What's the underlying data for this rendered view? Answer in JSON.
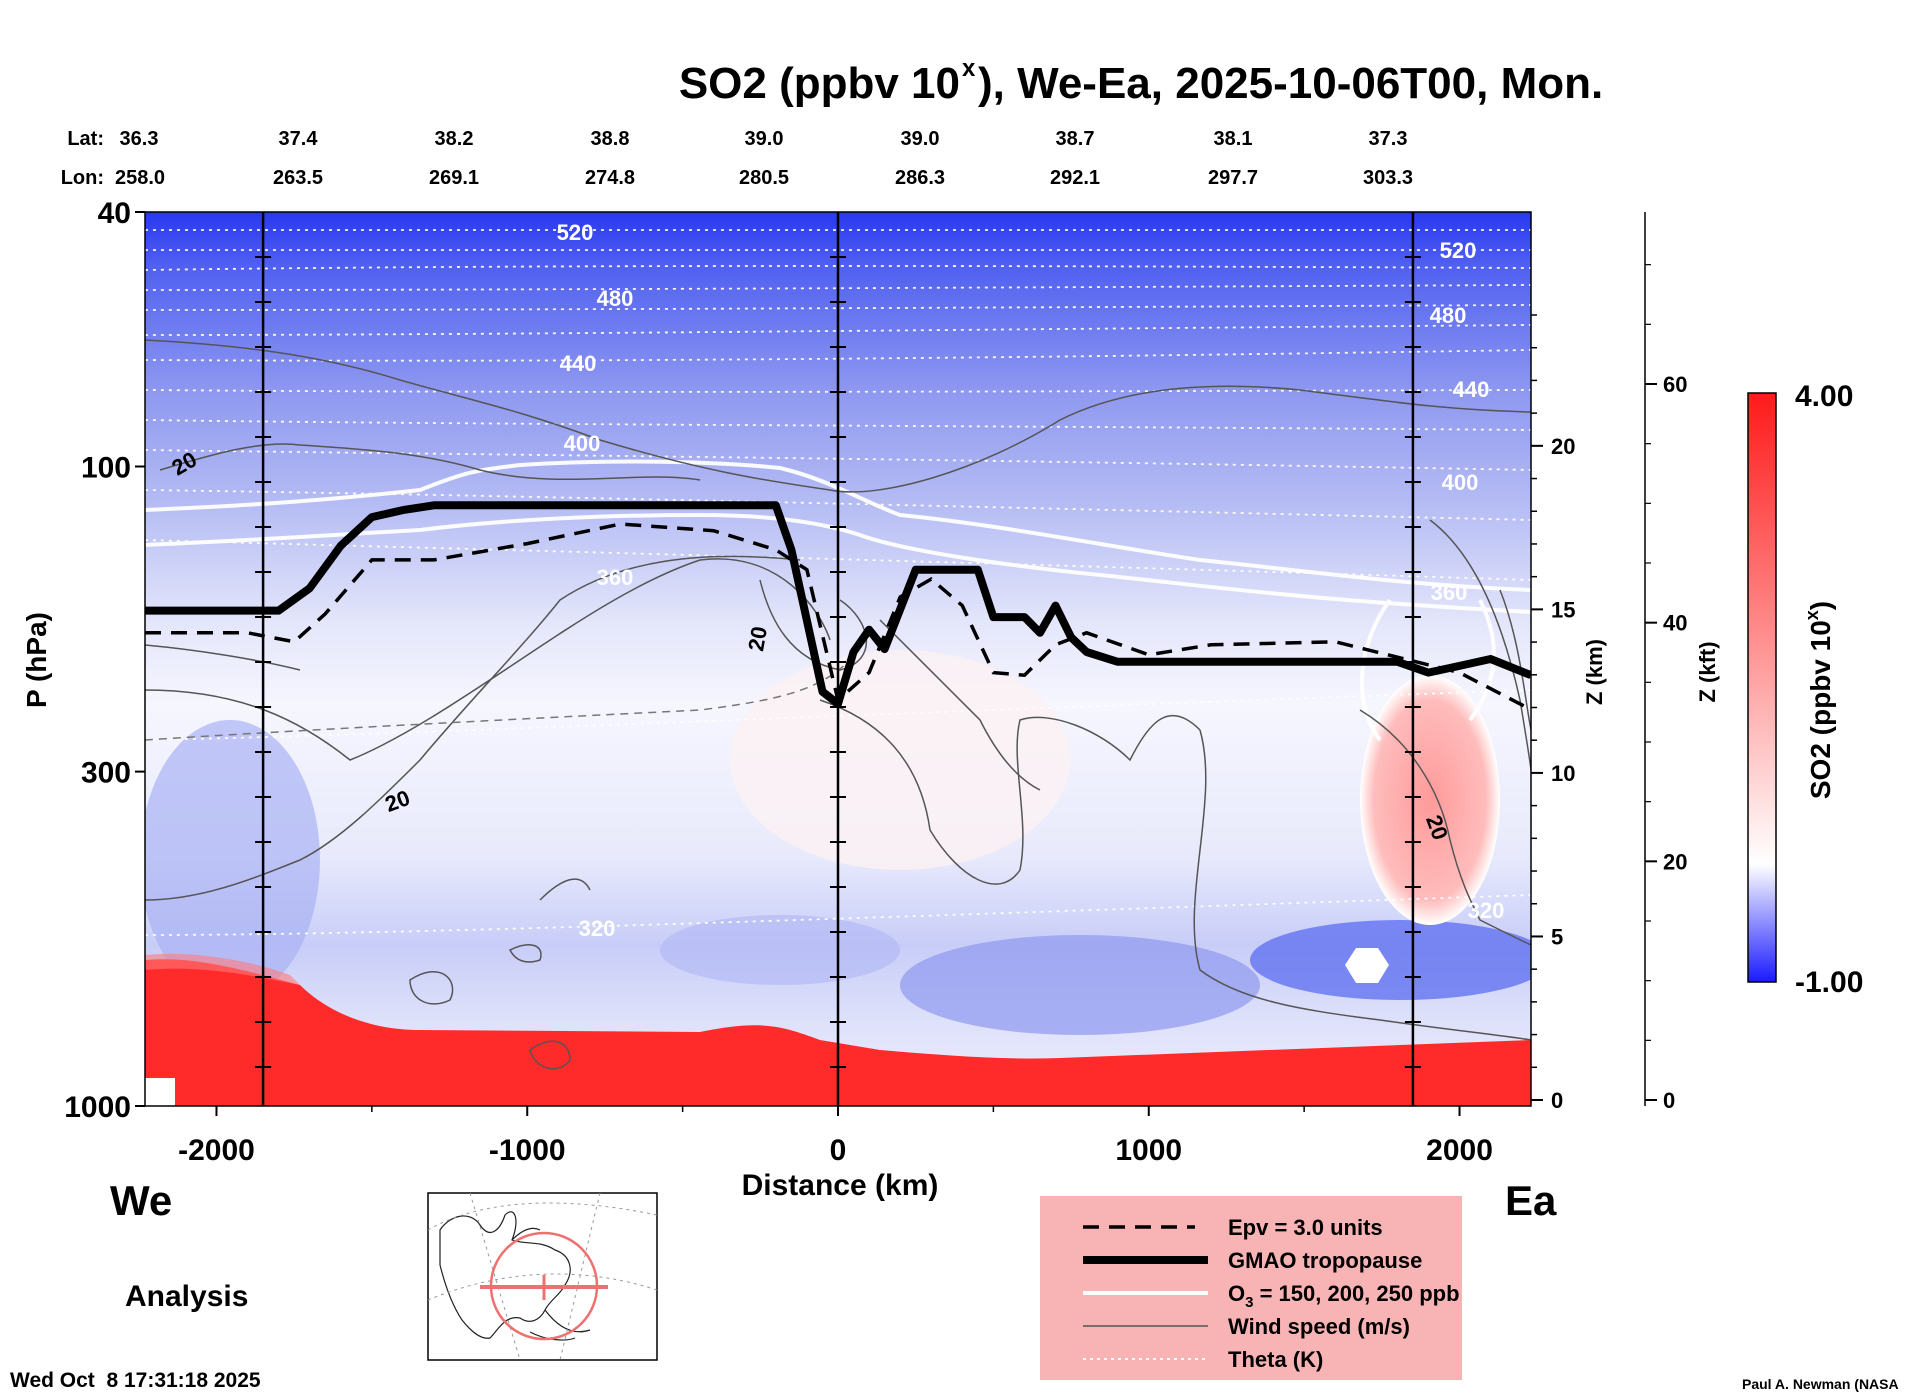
{
  "chart_data": {
    "type": "heatmap",
    "title_main": "SO2 (ppbv 10",
    "title_sup": "x",
    "title_rest": "), We-Ea, 2025-10-06T00, Mon.",
    "xlabel": "Distance (km)",
    "ylabel": "P (hPa)",
    "y2label": "Z (km)",
    "y3label": "Z (kft)",
    "colorbar_label_main": "SO2 (ppbv 10",
    "colorbar_label_sup": "x",
    "colorbar_label_rest": ")",
    "colorbar_max": "4.00",
    "colorbar_min": "-1.00",
    "colorbar_range": [
      -1.0,
      4.0
    ],
    "x_range": [
      -2230,
      2230
    ],
    "y_range_hpa": [
      1000,
      40
    ],
    "y_log": true,
    "x_ticks": [
      {
        "value": -2000,
        "label": "-2000"
      },
      {
        "value": -1000,
        "label": "-1000"
      },
      {
        "value": 0,
        "label": "0"
      },
      {
        "value": 1000,
        "label": "1000"
      },
      {
        "value": 2000,
        "label": "2000"
      }
    ],
    "p_ticks": [
      {
        "value": 40,
        "label": "40"
      },
      {
        "value": 100,
        "label": "100"
      },
      {
        "value": 300,
        "label": "300"
      },
      {
        "value": 1000,
        "label": "1000"
      }
    ],
    "z_km_ticks": [
      {
        "value": 0,
        "label": "0"
      },
      {
        "value": 5,
        "label": "5"
      },
      {
        "value": 10,
        "label": "10"
      },
      {
        "value": 15,
        "label": "15"
      },
      {
        "value": 20,
        "label": "20"
      }
    ],
    "z_kft_ticks": [
      {
        "value": 0,
        "label": "0"
      },
      {
        "value": 20,
        "label": "20"
      },
      {
        "value": 40,
        "label": "40"
      },
      {
        "value": 60,
        "label": "60"
      }
    ],
    "lat_label": "Lat:",
    "lon_label": "Lon:",
    "lat": [
      "36.3",
      "37.4",
      "38.2",
      "38.8",
      "39.0",
      "39.0",
      "38.7",
      "38.1",
      "37.3"
    ],
    "lon": [
      "258.0",
      "263.5",
      "269.1",
      "274.8",
      "280.5",
      "286.3",
      "292.1",
      "297.7",
      "303.3"
    ],
    "station_lines_km": [
      -1850,
      0,
      1850
    ],
    "tropopause_hpa": [
      [
        -2230,
        168
      ],
      [
        -1800,
        168
      ],
      [
        -1700,
        155
      ],
      [
        -1600,
        133
      ],
      [
        -1500,
        120
      ],
      [
        -1400,
        117
      ],
      [
        -1300,
        115
      ],
      [
        -1000,
        115
      ],
      [
        -500,
        115
      ],
      [
        -200,
        115
      ],
      [
        -150,
        135
      ],
      [
        -50,
        225
      ],
      [
        0,
        235
      ],
      [
        50,
        195
      ],
      [
        100,
        180
      ],
      [
        150,
        193
      ],
      [
        250,
        145
      ],
      [
        350,
        145
      ],
      [
        450,
        145
      ],
      [
        500,
        172
      ],
      [
        600,
        172
      ],
      [
        650,
        182
      ],
      [
        700,
        165
      ],
      [
        750,
        185
      ],
      [
        800,
        195
      ],
      [
        900,
        202
      ],
      [
        1200,
        202
      ],
      [
        1800,
        202
      ],
      [
        1900,
        210
      ],
      [
        2000,
        205
      ],
      [
        2100,
        200
      ],
      [
        2230,
        212
      ]
    ],
    "epv_hpa": [
      [
        -2230,
        182
      ],
      [
        -1900,
        182
      ],
      [
        -1750,
        188
      ],
      [
        -1650,
        170
      ],
      [
        -1500,
        140
      ],
      [
        -1300,
        140
      ],
      [
        -1000,
        132
      ],
      [
        -700,
        123
      ],
      [
        -400,
        126
      ],
      [
        -200,
        135
      ],
      [
        -100,
        145
      ],
      [
        0,
        232
      ],
      [
        100,
        210
      ],
      [
        200,
        160
      ],
      [
        300,
        150
      ],
      [
        400,
        165
      ],
      [
        500,
        210
      ],
      [
        600,
        212
      ],
      [
        700,
        190
      ],
      [
        800,
        182
      ],
      [
        1000,
        197
      ],
      [
        1200,
        190
      ],
      [
        1600,
        188
      ],
      [
        2000,
        210
      ],
      [
        2230,
        240
      ]
    ],
    "wind_contour_label": "20",
    "theta_labels": [
      "520",
      "480",
      "440",
      "400",
      "360",
      "320",
      "520",
      "480",
      "440",
      "400",
      "360",
      "320"
    ],
    "legend": [
      {
        "style": "dash",
        "label": "Epv = 3.0 units"
      },
      {
        "style": "thick",
        "label": "GMAO tropopause"
      },
      {
        "style": "white",
        "label": "O3 = 150, 200, 250 ppb",
        "prefix": "O",
        "sub": "3",
        "suffix": " = 150, 200, 250 ppb"
      },
      {
        "style": "thin",
        "label": "Wind speed (m/s)"
      },
      {
        "style": "dotted",
        "label": "Theta (K)"
      }
    ]
  },
  "labels": {
    "west": "We",
    "east": "Ea",
    "analysis": "Analysis",
    "timestamp": "Wed Oct  8 17:31:18 2025",
    "credit": "Paul A. Newman (NASA"
  },
  "colors": {
    "blue": "#1f3bff",
    "red": "#ff1a1a",
    "legend_bg": "#f8b4b4"
  }
}
